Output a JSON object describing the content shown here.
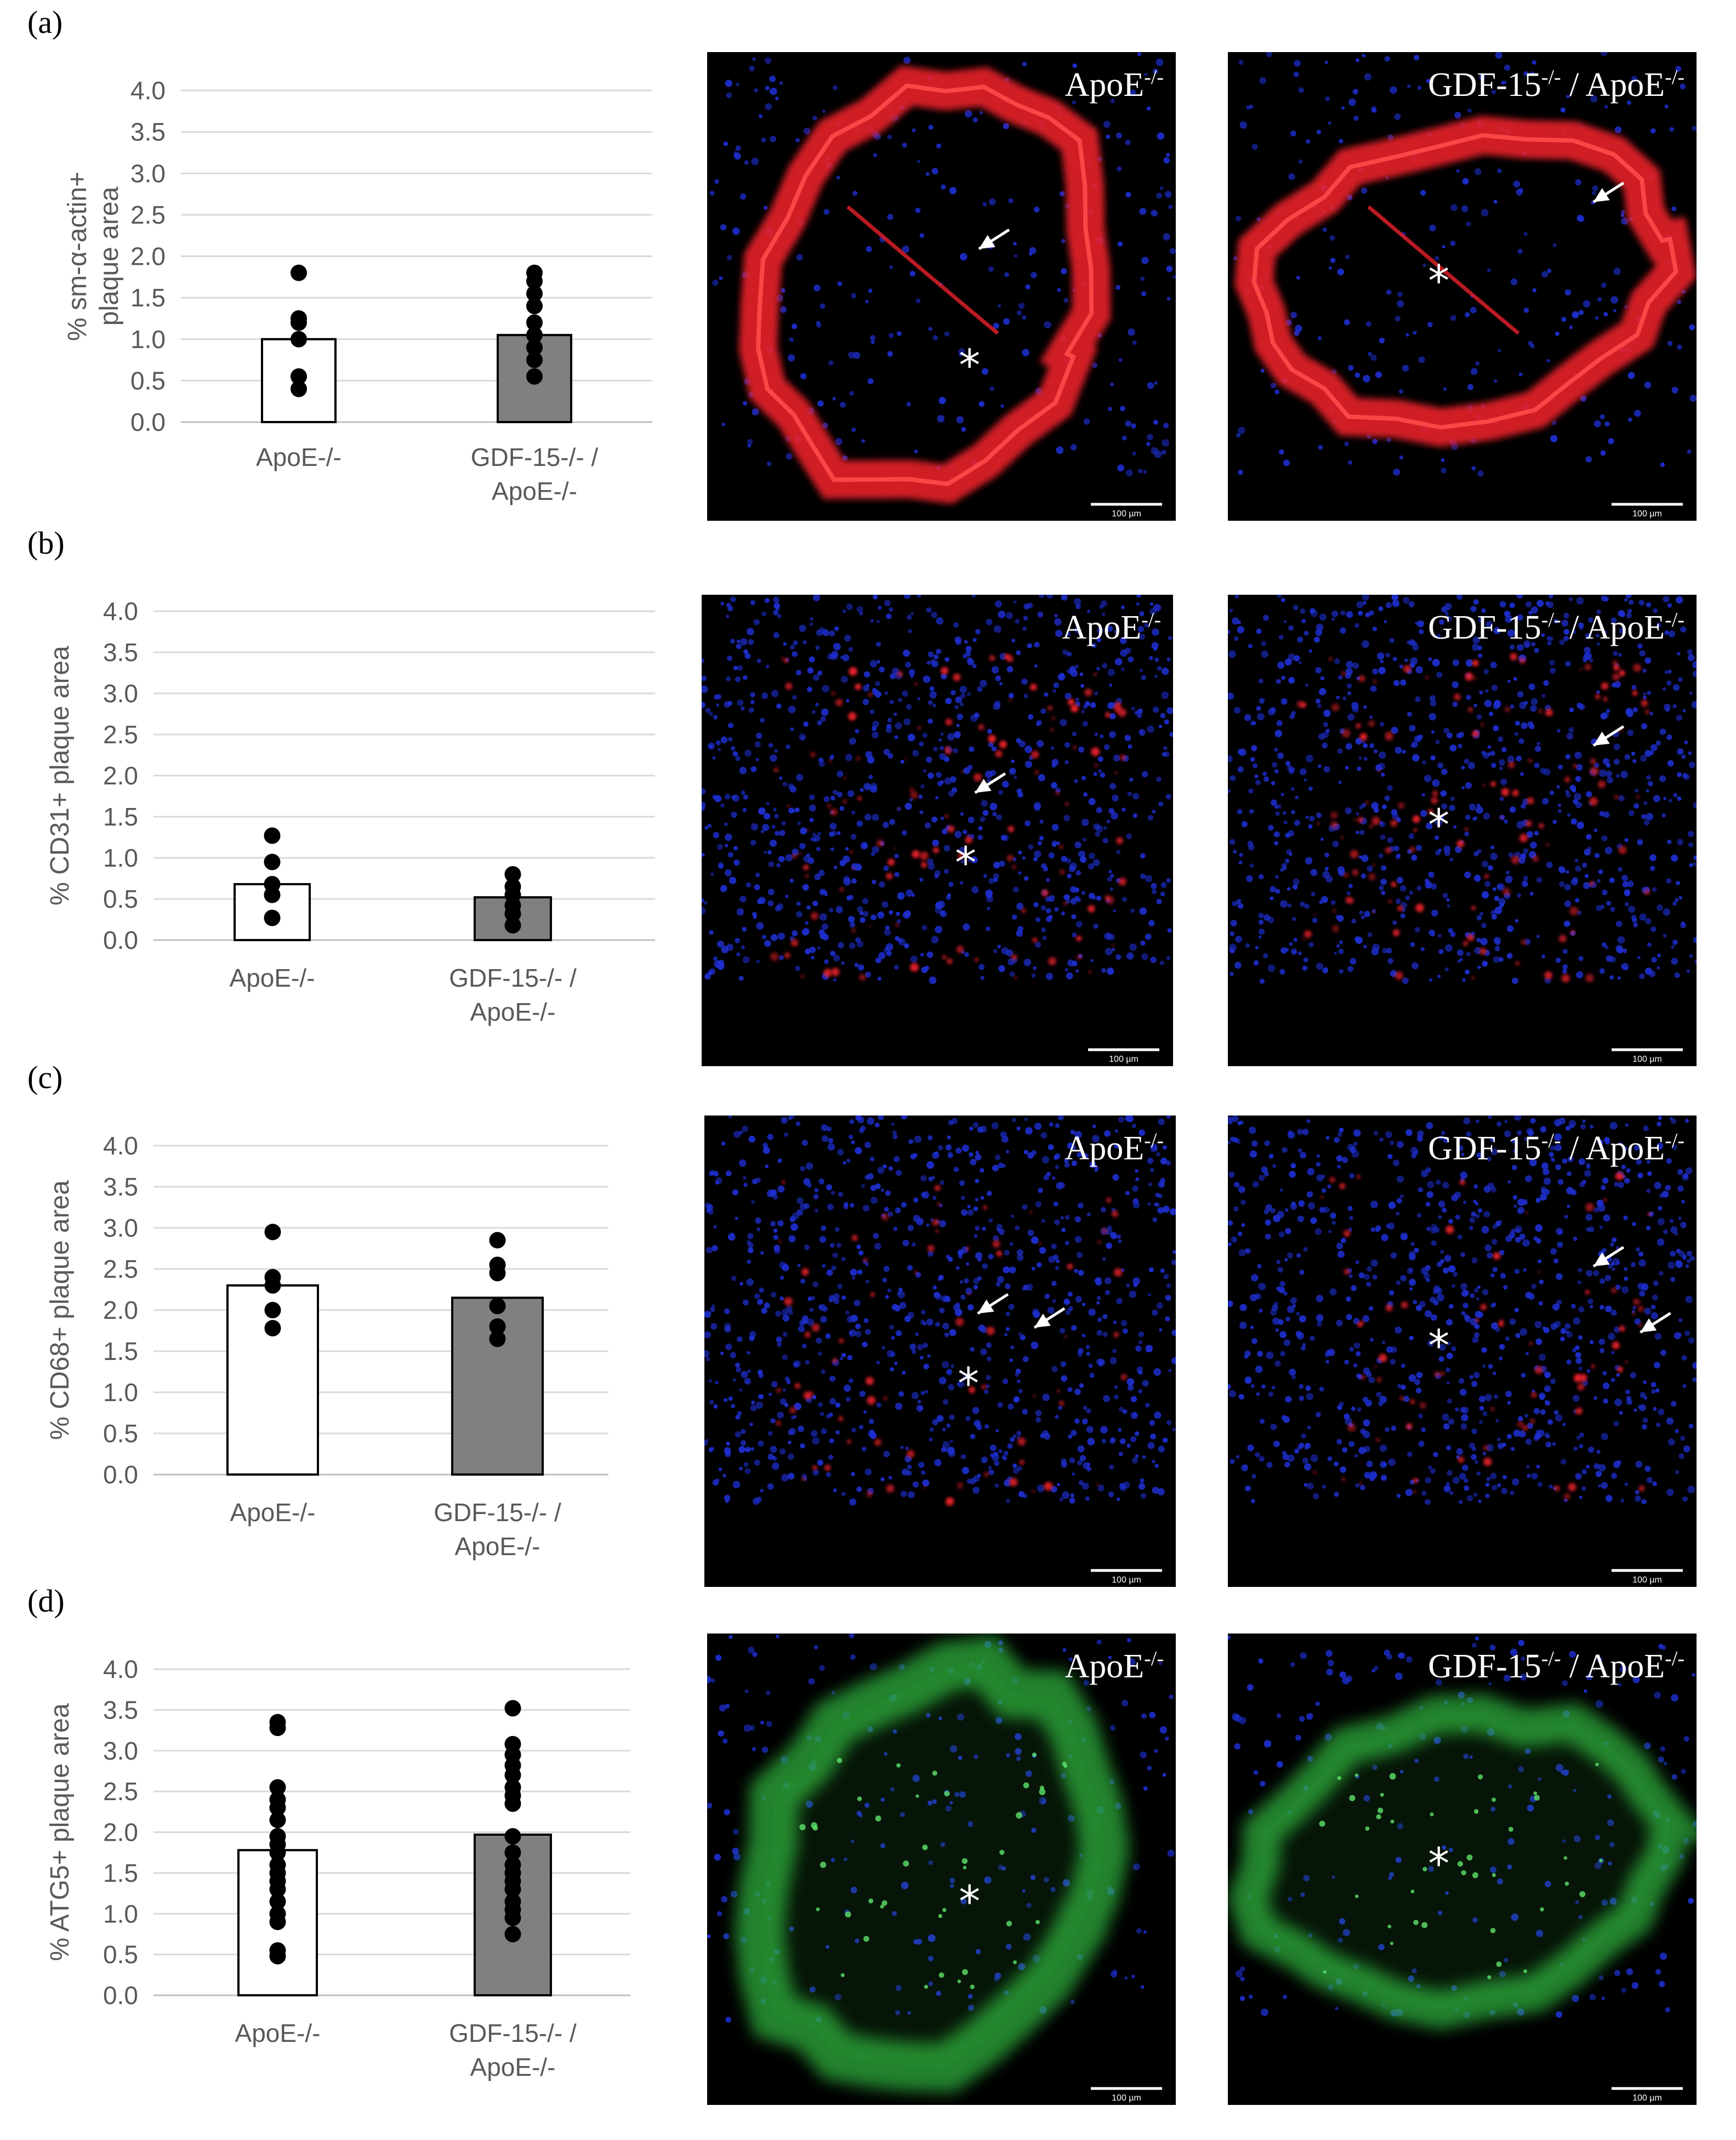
{
  "figure": {
    "panels": [
      {
        "label": "(a)",
        "ylabel_lines": [
          "% sm-α-actin+",
          "plaque area"
        ],
        "images": [
          {
            "title_main": "ApoE",
            "title_sup": "-/-",
            "title_post": ""
          },
          {
            "title_main": "GDF-15",
            "title_sup": "-/-",
            "title_post": " / ApoE",
            "title_sup2": "-/-"
          }
        ],
        "scale_label": "100 µm"
      },
      {
        "label": "(b)",
        "ylabel_lines": [
          "% CD31+ plaque area"
        ],
        "images": [
          {
            "title_main": "ApoE",
            "title_sup": "-/-",
            "title_post": ""
          },
          {
            "title_main": "GDF-15",
            "title_sup": "-/-",
            "title_post": " / ApoE",
            "title_sup2": "-/-"
          }
        ],
        "scale_label": "100 µm"
      },
      {
        "label": "(c)",
        "ylabel_lines": [
          "% CD68+ plaque area"
        ],
        "images": [
          {
            "title_main": "ApoE",
            "title_sup": "-/-",
            "title_post": ""
          },
          {
            "title_main": "GDF-15",
            "title_sup": "-/-",
            "title_post": " / ApoE",
            "title_sup2": "-/-"
          }
        ],
        "scale_label": "100 µm"
      },
      {
        "label": "(d)",
        "ylabel_lines": [
          "% ATG5+ plaque area"
        ],
        "images": [
          {
            "title_main": "ApoE",
            "title_sup": "-/-",
            "title_post": ""
          },
          {
            "title_main": "GDF-15",
            "title_sup": "-/-",
            "title_post": " / ApoE",
            "title_sup2": "-/-"
          }
        ],
        "scale_label": "100 µm"
      }
    ],
    "colors": {
      "bar_control": "#ffffff",
      "bar_ko": "#808080",
      "dot": "#000000",
      "grid": "#d9d9d9",
      "stain_red": "#e8202a",
      "stain_blue": "#1e2fd0",
      "stain_green": "#2fae3c"
    }
  },
  "chart_data": [
    {
      "type": "bar",
      "categories": [
        [
          "ApoE-/-"
        ],
        [
          "GDF-15-/- /",
          "ApoE-/-"
        ]
      ],
      "ylim": [
        0,
        4.0
      ],
      "yticks": [
        "0.0",
        "0.5",
        "1.0",
        "1.5",
        "2.0",
        "2.5",
        "3.0",
        "3.5",
        "4.0"
      ],
      "values": [
        1.0,
        1.05
      ],
      "points": [
        [
          1.8,
          1.25,
          1.2,
          1.0,
          0.55,
          0.4
        ],
        [
          1.8,
          1.7,
          1.55,
          1.4,
          1.2,
          1.05,
          0.9,
          0.75,
          0.55
        ]
      ]
    },
    {
      "type": "bar",
      "categories": [
        [
          "ApoE-/-"
        ],
        [
          "GDF-15-/- /",
          "ApoE-/-"
        ]
      ],
      "ylim": [
        0,
        4.0
      ],
      "yticks": [
        "0.0",
        "0.5",
        "1.0",
        "1.5",
        "2.0",
        "2.5",
        "3.0",
        "3.5",
        "4.0"
      ],
      "values": [
        0.68,
        0.52
      ],
      "points": [
        [
          1.27,
          0.95,
          0.68,
          0.55,
          0.27
        ],
        [
          0.8,
          0.65,
          0.55,
          0.42,
          0.32,
          0.18
        ]
      ]
    },
    {
      "type": "bar",
      "categories": [
        [
          "ApoE-/-"
        ],
        [
          "GDF-15-/- /",
          "ApoE-/-"
        ]
      ],
      "ylim": [
        0,
        4.0
      ],
      "yticks": [
        "0.0",
        "0.5",
        "1.0",
        "1.5",
        "2.0",
        "2.5",
        "3.0",
        "3.5",
        "4.0"
      ],
      "values": [
        2.3,
        2.15
      ],
      "points": [
        [
          2.95,
          2.4,
          2.3,
          2.0,
          1.78
        ],
        [
          2.85,
          2.55,
          2.45,
          2.05,
          1.8,
          1.65
        ]
      ]
    },
    {
      "type": "bar",
      "categories": [
        [
          "ApoE-/-"
        ],
        [
          "GDF-15-/- /",
          "ApoE-/-"
        ]
      ],
      "ylim": [
        0,
        4.0
      ],
      "yticks": [
        "0.0",
        "0.5",
        "1.0",
        "1.5",
        "2.0",
        "2.5",
        "3.0",
        "3.5",
        "4.0"
      ],
      "values": [
        1.78,
        1.97
      ],
      "points": [
        [
          3.35,
          3.28,
          2.55,
          2.4,
          2.3,
          2.15,
          1.95,
          1.85,
          1.75,
          1.6,
          1.5,
          1.4,
          1.3,
          1.15,
          1.0,
          0.9,
          0.55,
          0.48
        ],
        [
          3.52,
          3.08,
          2.95,
          2.82,
          2.7,
          2.55,
          2.45,
          2.35,
          1.95,
          1.75,
          1.6,
          1.5,
          1.4,
          1.3,
          1.15,
          1.05,
          0.95,
          0.75
        ]
      ]
    }
  ]
}
